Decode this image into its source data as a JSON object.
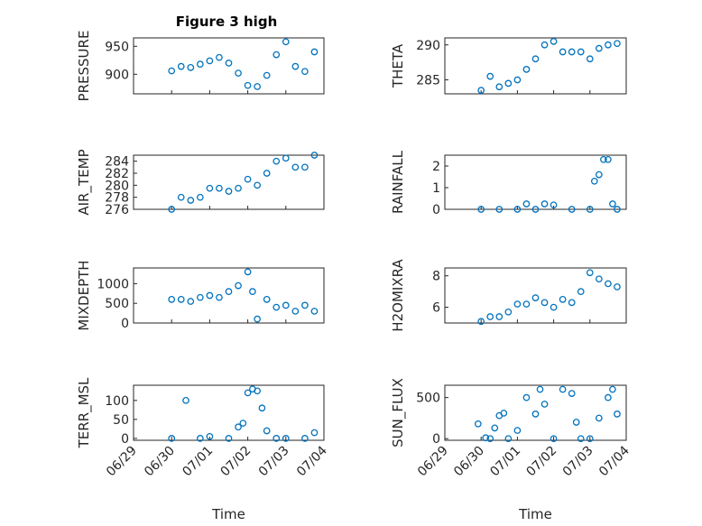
{
  "figure": {
    "title": "Figure 3 high"
  },
  "colors": {
    "marker": "#0072BD",
    "axis": "#262626",
    "background": "#ffffff"
  },
  "x_tick_labels": [
    "06/29",
    "06/30",
    "07/01",
    "07/02",
    "07/03",
    "07/04"
  ],
  "chart_data": [
    {
      "type": "scatter",
      "title": "Figure 3 high",
      "ylabel": "PRESSURE",
      "xlabel": "",
      "ylim": [
        865,
        965
      ],
      "yticks": [
        900,
        950
      ],
      "yticklabels": [
        "900",
        "950"
      ],
      "grid": true,
      "x": [
        "06/30 00:00",
        "06/30 06:00",
        "06/30 12:00",
        "06/30 18:00",
        "07/01 00:00",
        "07/01 06:00",
        "07/01 12:00",
        "07/01 18:00",
        "07/02 00:00",
        "07/02 06:00",
        "07/02 12:00",
        "07/02 18:00",
        "07/03 00:00",
        "07/03 06:00",
        "07/03 12:00",
        "07/03 18:00"
      ],
      "y": [
        906,
        914,
        912,
        918,
        924,
        930,
        920,
        902,
        880,
        878,
        898,
        935,
        958,
        914,
        905,
        940
      ]
    },
    {
      "type": "scatter",
      "ylabel": "THETA",
      "xlabel": "",
      "ylim": [
        283,
        291
      ],
      "yticks": [
        285,
        290
      ],
      "yticklabels": [
        "285",
        "290"
      ],
      "grid": true,
      "x": [
        "06/30 00:00",
        "06/30 06:00",
        "06/30 12:00",
        "06/30 18:00",
        "07/01 00:00",
        "07/01 06:00",
        "07/01 12:00",
        "07/01 18:00",
        "07/02 00:00",
        "07/02 06:00",
        "07/02 12:00",
        "07/02 18:00",
        "07/03 00:00",
        "07/03 06:00",
        "07/03 12:00",
        "07/03 18:00"
      ],
      "y": [
        283.5,
        285.5,
        284,
        284.5,
        285,
        286.5,
        288,
        290,
        290.5,
        289,
        289,
        289,
        288,
        289.5,
        290,
        290.2
      ]
    },
    {
      "type": "scatter",
      "ylabel": "AIR_TEMP",
      "xlabel": "",
      "ylim": [
        276,
        285
      ],
      "yticks": [
        276,
        278,
        280,
        282,
        284
      ],
      "yticklabels": [
        "276",
        "278",
        "280",
        "282",
        "284"
      ],
      "grid": true,
      "x": [
        "06/30 00:00",
        "06/30 06:00",
        "06/30 12:00",
        "06/30 18:00",
        "07/01 00:00",
        "07/01 06:00",
        "07/01 12:00",
        "07/01 18:00",
        "07/02 00:00",
        "07/02 06:00",
        "07/02 12:00",
        "07/02 18:00",
        "07/03 00:00",
        "07/03 06:00",
        "07/03 12:00",
        "07/03 18:00"
      ],
      "y": [
        276,
        278,
        277.5,
        278,
        279.5,
        279.5,
        279,
        279.5,
        281,
        280,
        282,
        284,
        284.5,
        283,
        283,
        285
      ]
    },
    {
      "type": "scatter",
      "ylabel": "RAINFALL",
      "xlabel": "",
      "ylim": [
        0,
        2.5
      ],
      "yticks": [
        0,
        1,
        2
      ],
      "yticklabels": [
        "0",
        "1",
        "2"
      ],
      "grid": true,
      "x": [
        "06/30 00:00",
        "06/30 12:00",
        "07/01 00:00",
        "07/01 06:00",
        "07/01 12:00",
        "07/01 18:00",
        "07/02 00:00",
        "07/02 12:00",
        "07/03 00:00",
        "07/03 03:00",
        "07/03 06:00",
        "07/03 09:00",
        "07/03 12:00",
        "07/03 15:00",
        "07/03 18:00"
      ],
      "y": [
        0,
        0,
        0,
        0.25,
        0,
        0.25,
        0.2,
        0,
        0,
        1.3,
        1.6,
        2.3,
        2.3,
        0.25,
        0
      ]
    },
    {
      "type": "scatter",
      "ylabel": "MIXDEPTH",
      "xlabel": "",
      "ylim": [
        0,
        1400
      ],
      "yticks": [
        0,
        500,
        1000
      ],
      "yticklabels": [
        "0",
        "500",
        "1000"
      ],
      "grid": true,
      "x": [
        "06/30 00:00",
        "06/30 06:00",
        "06/30 12:00",
        "06/30 18:00",
        "07/01 00:00",
        "07/01 06:00",
        "07/01 12:00",
        "07/01 18:00",
        "07/02 00:00",
        "07/02 03:00",
        "07/02 06:00",
        "07/02 12:00",
        "07/02 18:00",
        "07/03 00:00",
        "07/03 06:00",
        "07/03 12:00",
        "07/03 18:00"
      ],
      "y": [
        600,
        600,
        550,
        650,
        700,
        650,
        800,
        950,
        1300,
        800,
        100,
        600,
        400,
        450,
        300,
        450,
        300
      ]
    },
    {
      "type": "scatter",
      "ylabel": "H2OMIXRA",
      "xlabel": "",
      "ylim": [
        5,
        8.5
      ],
      "yticks": [
        6,
        8
      ],
      "yticklabels": [
        "6",
        "8"
      ],
      "grid": true,
      "x": [
        "06/30 00:00",
        "06/30 06:00",
        "06/30 12:00",
        "06/30 18:00",
        "07/01 00:00",
        "07/01 06:00",
        "07/01 12:00",
        "07/01 18:00",
        "07/02 00:00",
        "07/02 06:00",
        "07/02 12:00",
        "07/02 18:00",
        "07/03 00:00",
        "07/03 06:00",
        "07/03 12:00",
        "07/03 18:00"
      ],
      "y": [
        5.1,
        5.4,
        5.4,
        5.7,
        6.2,
        6.2,
        6.6,
        6.3,
        6.0,
        6.5,
        6.3,
        7.0,
        8.2,
        7.8,
        7.5,
        7.3
      ]
    },
    {
      "type": "scatter",
      "ylabel": "TERR_MSL",
      "xlabel": "Time",
      "ylim": [
        -5,
        140
      ],
      "yticks": [
        0,
        50,
        100
      ],
      "yticklabels": [
        "0",
        "50",
        "100"
      ],
      "grid": true,
      "x": [
        "06/30 00:00",
        "06/30 09:00",
        "06/30 18:00",
        "07/01 00:00",
        "07/01 12:00",
        "07/01 18:00",
        "07/01 21:00",
        "07/02 00:00",
        "07/02 03:00",
        "07/02 06:00",
        "07/02 09:00",
        "07/02 12:00",
        "07/02 18:00",
        "07/03 00:00",
        "07/03 12:00",
        "07/03 18:00"
      ],
      "y": [
        0,
        100,
        0,
        5,
        0,
        30,
        40,
        120,
        130,
        125,
        80,
        20,
        0,
        0,
        0,
        15
      ]
    },
    {
      "type": "scatter",
      "ylabel": "SUN_FLUX",
      "xlabel": "Time",
      "ylim": [
        -20,
        650
      ],
      "yticks": [
        0,
        500
      ],
      "yticklabels": [
        "0",
        "500"
      ],
      "grid": true,
      "x": [
        "06/29 22:00",
        "06/30 03:00",
        "06/30 06:00",
        "06/30 09:00",
        "06/30 12:00",
        "06/30 15:00",
        "06/30 18:00",
        "07/01 00:00",
        "07/01 06:00",
        "07/01 12:00",
        "07/01 15:00",
        "07/01 18:00",
        "07/02 00:00",
        "07/02 06:00",
        "07/02 12:00",
        "07/02 15:00",
        "07/02 18:00",
        "07/03 00:00",
        "07/03 06:00",
        "07/03 12:00",
        "07/03 15:00",
        "07/03 18:00"
      ],
      "y": [
        180,
        10,
        0,
        130,
        280,
        310,
        0,
        100,
        500,
        300,
        600,
        420,
        0,
        600,
        550,
        200,
        0,
        0,
        250,
        500,
        600,
        300
      ]
    }
  ]
}
